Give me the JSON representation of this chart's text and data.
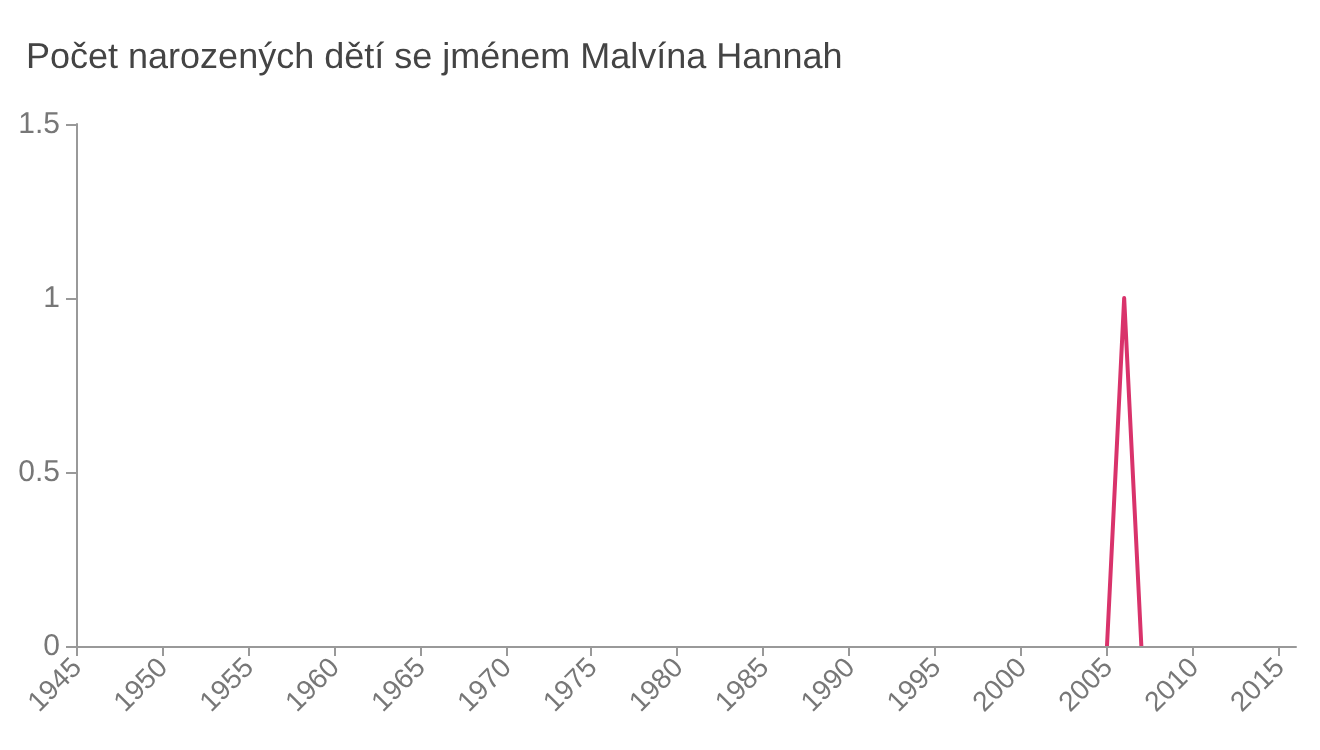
{
  "chart_data": {
    "type": "line",
    "title": "Počet narozených dětí se jménem Malvína Hannah",
    "x": [
      2005,
      2006,
      2007
    ],
    "series": [
      {
        "color": "#d9336b",
        "values": [
          0,
          1,
          0
        ]
      }
    ],
    "xlim": [
      1945,
      2016
    ],
    "xticks": [
      1945,
      1950,
      1955,
      1960,
      1965,
      1970,
      1975,
      1980,
      1985,
      1990,
      1995,
      2000,
      2005,
      2010,
      2015
    ],
    "ylim": [
      0,
      1.5
    ],
    "yticks": [
      0,
      0.5,
      1,
      1.5
    ],
    "grid": false,
    "marker": "none",
    "line_style": "solid"
  }
}
